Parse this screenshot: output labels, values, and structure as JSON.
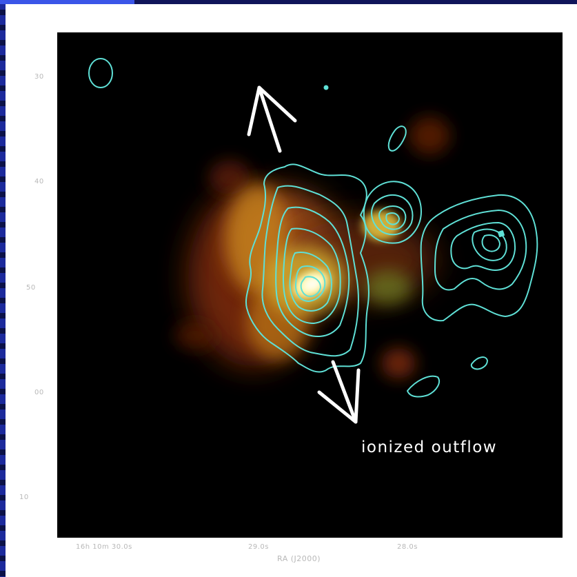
{
  "figure": {
    "annotation": "ionized outflow",
    "y_ticks": [
      "30",
      "40",
      "50",
      "00",
      "10"
    ],
    "x_ticks": [
      "16h 10m 30.0s",
      "29.0s",
      "28.0s"
    ],
    "x_axis_label": "RA (J2000)",
    "colors": {
      "contours": "#5fe0d6",
      "arrows": "#ffffff",
      "background": "#000000",
      "emission_core": "#fff8a8",
      "emission_outer": "#b03a10"
    }
  }
}
